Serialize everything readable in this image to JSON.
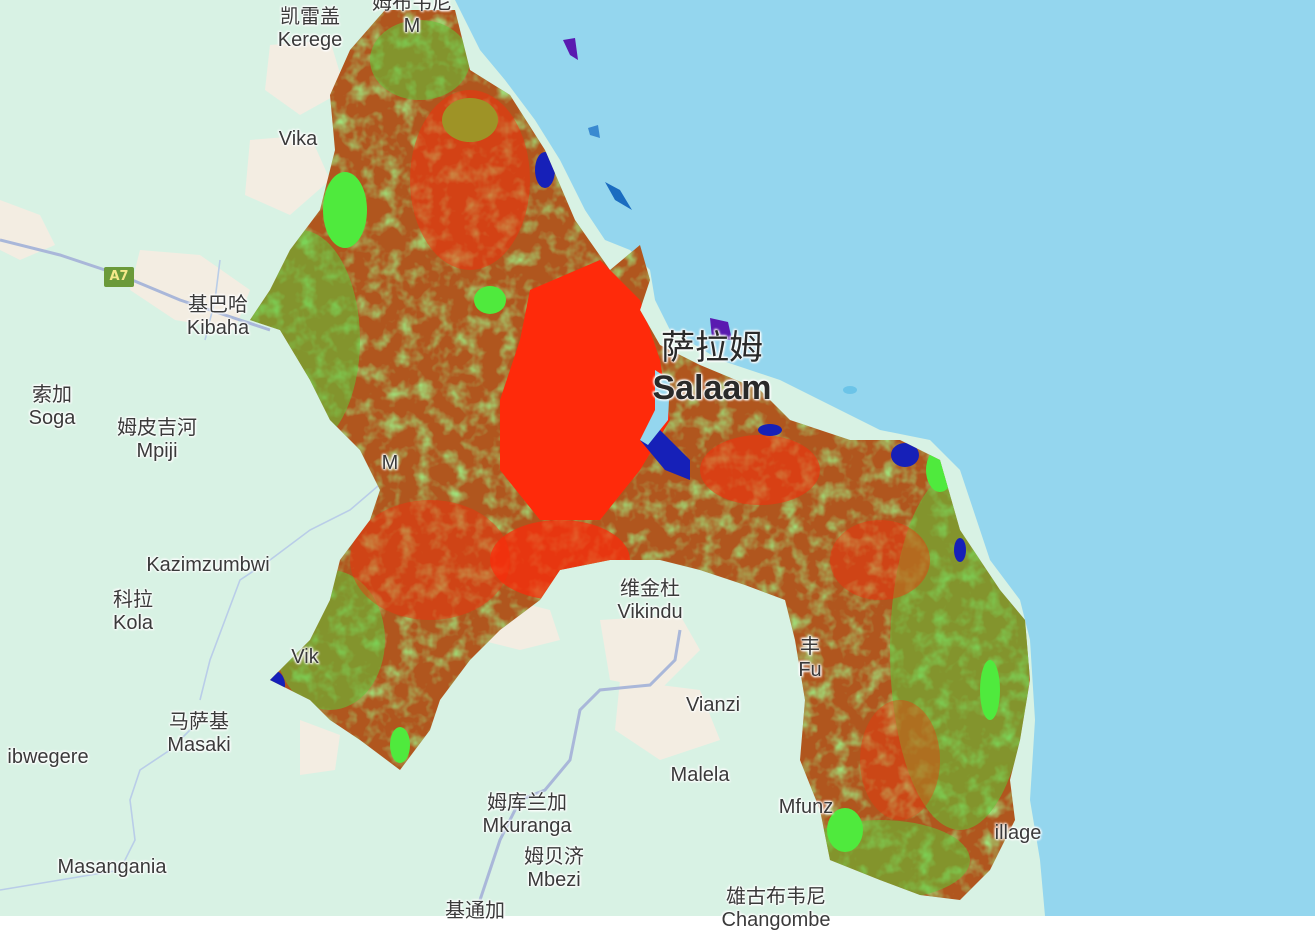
{
  "colors": {
    "land": "#d8f2e4",
    "sea": "#94d6ee",
    "road": "#a9b7d9",
    "overlay_urban": "#ff2a0a",
    "overlay_mixed": "#b0561e",
    "overlay_vegetation": "#4fea3d",
    "overlay_water": "#1620b8"
  },
  "road_shield": {
    "label": "A7"
  },
  "place_labels": [
    {
      "name": "kerege",
      "zh": "凯雷盖",
      "en": "Kerege"
    },
    {
      "name": "top",
      "zh": "姆布韦尼",
      "en": "M"
    },
    {
      "name": "vika",
      "zh": "",
      "en": "Vika"
    },
    {
      "name": "kibaha",
      "zh": "基巴哈",
      "en": "Kibaha"
    },
    {
      "name": "soga",
      "zh": "索加",
      "en": "Soga"
    },
    {
      "name": "mpiji",
      "zh": "姆皮吉河",
      "en": "Mpiji"
    },
    {
      "name": "m-left",
      "zh": "",
      "en": "M"
    },
    {
      "name": "kazimzumbwi",
      "zh": "",
      "en": "Kazimzumbwi"
    },
    {
      "name": "kola",
      "zh": "科拉",
      "en": "Kola"
    },
    {
      "name": "vik",
      "zh": "",
      "en": "Vik"
    },
    {
      "name": "masaki",
      "zh": "马萨基",
      "en": "Masaki"
    },
    {
      "name": "ibwegere",
      "zh": "",
      "en": "ibwegere"
    },
    {
      "name": "masangania",
      "zh": "",
      "en": "Masangania"
    },
    {
      "name": "mkuranga",
      "zh": "姆库兰加",
      "en": "Mkuranga"
    },
    {
      "name": "mbezi",
      "zh": "姆贝济",
      "en": "Mbezi"
    },
    {
      "name": "bottom-zh",
      "zh": "基通加",
      "en": ""
    },
    {
      "name": "vikindu",
      "zh": "维金杜",
      "en": "Vikindu"
    },
    {
      "name": "vianzi",
      "zh": "",
      "en": "Vianzi"
    },
    {
      "name": "malela",
      "zh": "",
      "en": "Malela"
    },
    {
      "name": "mfunz",
      "zh": "",
      "en": "Mfunz"
    },
    {
      "name": "fu",
      "zh": "丰",
      "en": "Fu"
    },
    {
      "name": "village",
      "zh": "",
      "en": "illage"
    },
    {
      "name": "chuo",
      "zh": "雄古布韦尼",
      "en": "Changombe"
    }
  ],
  "city_label": {
    "zh": "萨拉姆",
    "en": "Salaam"
  }
}
